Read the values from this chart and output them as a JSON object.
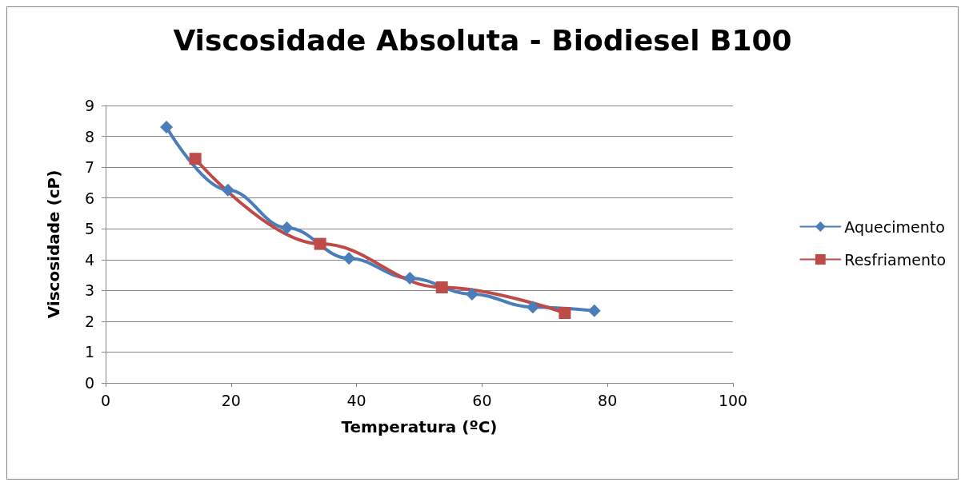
{
  "chart_data": {
    "type": "line",
    "title": "Viscosidade Absoluta - Biodiesel B100",
    "xlabel": "Temperatura (ºC)",
    "ylabel": "Viscosidade (cP)",
    "xlim": [
      0,
      100
    ],
    "xticks": [
      0,
      20,
      40,
      60,
      80,
      100
    ],
    "ylim": [
      0,
      9
    ],
    "yticks": [
      0,
      1,
      2,
      3,
      4,
      5,
      6,
      7,
      8,
      9
    ],
    "grid": "y",
    "legend": "right",
    "line_style": "solid",
    "series": [
      {
        "name": "Aquecimento",
        "color": "#4a7ebb",
        "marker": "diamond",
        "x": [
          9.7,
          19.5,
          28.9,
          38.8,
          48.5,
          58.4,
          68.1,
          77.9
        ],
        "values": [
          8.3,
          6.26,
          5.03,
          4.04,
          3.4,
          2.88,
          2.46,
          2.34
        ]
      },
      {
        "name": "Resfriamento",
        "color": "#be4b48",
        "marker": "square",
        "x": [
          14.3,
          34.2,
          53.6,
          73.2
        ],
        "values": [
          7.27,
          4.51,
          3.1,
          2.27
        ]
      }
    ]
  }
}
